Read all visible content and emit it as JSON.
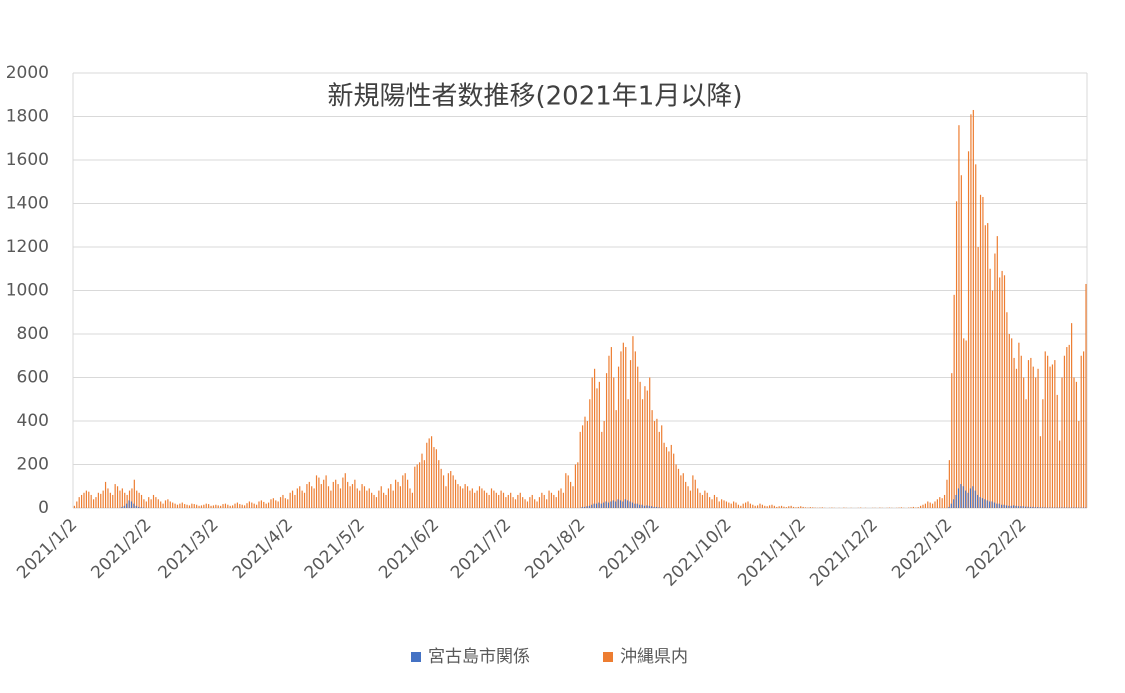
{
  "chart_data": {
    "type": "bar",
    "title": "新規陽性者数推移(2021年1月以降)",
    "categories": [
      "2021/1/2",
      null,
      null,
      null,
      null,
      null,
      null,
      null,
      null,
      null,
      null,
      null,
      null,
      null,
      null,
      null,
      null,
      null,
      null,
      null,
      null,
      null,
      null,
      null,
      null,
      null,
      null,
      null,
      null,
      null,
      null,
      "2021/2/2",
      null,
      null,
      null,
      null,
      null,
      null,
      null,
      null,
      null,
      null,
      null,
      null,
      null,
      null,
      null,
      null,
      null,
      null,
      null,
      null,
      null,
      null,
      null,
      null,
      null,
      null,
      null,
      "2021/3/2",
      null,
      null,
      null,
      null,
      null,
      null,
      null,
      null,
      null,
      null,
      null,
      null,
      null,
      null,
      null,
      null,
      null,
      null,
      null,
      null,
      null,
      null,
      null,
      null,
      null,
      null,
      null,
      null,
      null,
      null,
      "2021/4/2",
      null,
      null,
      null,
      null,
      null,
      null,
      null,
      null,
      null,
      null,
      null,
      null,
      null,
      null,
      null,
      null,
      null,
      null,
      null,
      null,
      null,
      null,
      null,
      null,
      null,
      null,
      null,
      null,
      null,
      "2021/5/2",
      null,
      null,
      null,
      null,
      null,
      null,
      null,
      null,
      null,
      null,
      null,
      null,
      null,
      null,
      null,
      null,
      null,
      null,
      null,
      null,
      null,
      null,
      null,
      null,
      null,
      null,
      null,
      null,
      null,
      null,
      "2021/6/2",
      null,
      null,
      null,
      null,
      null,
      null,
      null,
      null,
      null,
      null,
      null,
      null,
      null,
      null,
      null,
      null,
      null,
      null,
      null,
      null,
      null,
      null,
      null,
      null,
      null,
      null,
      null,
      null,
      null,
      "2021/7/2",
      null,
      null,
      null,
      null,
      null,
      null,
      null,
      null,
      null,
      null,
      null,
      null,
      null,
      null,
      null,
      null,
      null,
      null,
      null,
      null,
      null,
      null,
      null,
      null,
      null,
      null,
      null,
      null,
      null,
      null,
      "2021/8/2",
      null,
      null,
      null,
      null,
      null,
      null,
      null,
      null,
      null,
      null,
      null,
      null,
      null,
      null,
      null,
      null,
      null,
      null,
      null,
      null,
      null,
      null,
      null,
      null,
      null,
      null,
      null,
      null,
      null,
      null,
      "2021/9/2",
      null,
      null,
      null,
      null,
      null,
      null,
      null,
      null,
      null,
      null,
      null,
      null,
      null,
      null,
      null,
      null,
      null,
      null,
      null,
      null,
      null,
      null,
      null,
      null,
      null,
      null,
      null,
      null,
      null,
      "2021/10/2",
      null,
      null,
      null,
      null,
      null,
      null,
      null,
      null,
      null,
      null,
      null,
      null,
      null,
      null,
      null,
      null,
      null,
      null,
      null,
      null,
      null,
      null,
      null,
      null,
      null,
      null,
      null,
      null,
      null,
      null,
      "2021/11/2",
      null,
      null,
      null,
      null,
      null,
      null,
      null,
      null,
      null,
      null,
      null,
      null,
      null,
      null,
      null,
      null,
      null,
      null,
      null,
      null,
      null,
      null,
      null,
      null,
      null,
      null,
      null,
      null,
      null,
      "2021/12/2",
      null,
      null,
      null,
      null,
      null,
      null,
      null,
      null,
      null,
      null,
      null,
      null,
      null,
      null,
      null,
      null,
      null,
      null,
      null,
      null,
      null,
      null,
      null,
      null,
      null,
      null,
      null,
      null,
      null,
      null,
      "2022/1/2",
      null,
      null,
      null,
      null,
      null,
      null,
      null,
      null,
      null,
      null,
      null,
      null,
      null,
      null,
      null,
      null,
      null,
      null,
      null,
      null,
      null,
      null,
      null,
      null,
      null,
      null,
      null,
      null,
      null,
      null,
      "2022/2/2",
      null,
      null,
      null,
      null,
      null,
      null,
      null,
      null,
      null,
      null,
      null,
      null,
      null,
      null,
      null,
      null,
      null,
      null,
      null,
      null,
      null,
      null,
      null,
      null,
      null,
      null
    ],
    "series": [
      {
        "name": "宮古島市関係",
        "color": "#4472c4",
        "values": [
          0,
          0,
          0,
          0,
          0,
          0,
          0,
          0,
          0,
          0,
          0,
          0,
          0,
          0,
          0,
          0,
          0,
          0,
          0,
          0,
          5,
          10,
          20,
          35,
          30,
          20,
          10,
          5,
          3,
          2,
          0,
          0,
          0,
          0,
          0,
          0,
          0,
          0,
          0,
          0,
          0,
          0,
          0,
          0,
          0,
          0,
          0,
          0,
          0,
          0,
          0,
          0,
          0,
          0,
          0,
          0,
          0,
          0,
          0,
          0,
          0,
          0,
          0,
          0,
          0,
          0,
          0,
          0,
          0,
          0,
          0,
          0,
          0,
          0,
          0,
          0,
          0,
          0,
          0,
          0,
          0,
          0,
          0,
          0,
          0,
          0,
          0,
          0,
          0,
          0,
          0,
          0,
          0,
          0,
          0,
          0,
          0,
          0,
          0,
          0,
          0,
          0,
          0,
          0,
          0,
          0,
          0,
          0,
          0,
          0,
          0,
          0,
          0,
          0,
          0,
          0,
          0,
          0,
          0,
          0,
          0,
          0,
          0,
          0,
          0,
          0,
          0,
          0,
          0,
          0,
          0,
          0,
          0,
          0,
          0,
          0,
          0,
          0,
          0,
          0,
          0,
          0,
          0,
          0,
          0,
          0,
          0,
          0,
          0,
          0,
          0,
          0,
          0,
          0,
          0,
          0,
          0,
          0,
          0,
          0,
          0,
          0,
          0,
          0,
          0,
          0,
          0,
          0,
          0,
          0,
          0,
          0,
          0,
          0,
          0,
          0,
          0,
          0,
          0,
          0,
          0,
          0,
          0,
          0,
          0,
          0,
          0,
          0,
          0,
          0,
          0,
          0,
          0,
          0,
          0,
          0,
          0,
          0,
          0,
          0,
          0,
          0,
          0,
          0,
          0,
          0,
          0,
          0,
          0,
          0,
          0,
          0,
          5,
          5,
          8,
          10,
          15,
          20,
          20,
          25,
          20,
          25,
          30,
          25,
          30,
          35,
          30,
          40,
          35,
          30,
          40,
          35,
          30,
          25,
          20,
          20,
          15,
          15,
          10,
          12,
          10,
          8,
          5,
          5,
          3,
          2,
          0,
          0,
          0,
          0,
          0,
          0,
          0,
          0,
          0,
          0,
          0,
          0,
          0,
          0,
          0,
          0,
          0,
          0,
          0,
          0,
          0,
          0,
          0,
          0,
          0,
          0,
          0,
          0,
          0,
          0,
          0,
          0,
          0,
          0,
          0,
          0,
          0,
          0,
          0,
          0,
          0,
          0,
          0,
          0,
          0,
          0,
          0,
          0,
          0,
          0,
          0,
          0,
          0,
          0,
          0,
          0,
          0,
          0,
          0,
          0,
          0,
          0,
          0,
          0,
          0,
          0,
          0,
          0,
          0,
          0,
          0,
          0,
          0,
          0,
          0,
          0,
          0,
          0,
          0,
          0,
          0,
          0,
          0,
          0,
          0,
          0,
          0,
          0,
          0,
          0,
          0,
          0,
          0,
          0,
          0,
          0,
          0,
          0,
          0,
          0,
          0,
          0,
          0,
          0,
          0,
          0,
          0,
          0,
          0,
          0,
          0,
          0,
          0,
          0,
          0,
          0,
          0,
          0,
          0,
          5,
          20,
          40,
          60,
          90,
          110,
          100,
          80,
          70,
          90,
          100,
          80,
          60,
          50,
          45,
          40,
          35,
          30,
          30,
          25,
          20,
          20,
          15,
          15,
          12,
          10,
          10,
          12,
          10,
          8,
          8,
          8,
          6,
          6,
          5,
          5,
          4,
          4,
          3,
          3,
          3,
          2,
          2,
          2,
          2,
          2,
          2,
          2,
          2,
          2,
          2,
          2,
          2,
          2,
          2,
          2,
          2,
          2
        ]
      },
      {
        "name": "沖縄県内",
        "color": "#ed7d31",
        "values": [
          10,
          30,
          50,
          60,
          70,
          80,
          75,
          60,
          40,
          50,
          70,
          65,
          80,
          120,
          90,
          70,
          60,
          110,
          100,
          80,
          90,
          70,
          60,
          80,
          90,
          130,
          80,
          70,
          60,
          40,
          30,
          50,
          40,
          60,
          50,
          40,
          30,
          20,
          35,
          40,
          30,
          25,
          20,
          15,
          20,
          25,
          18,
          15,
          12,
          20,
          18,
          15,
          10,
          12,
          15,
          20,
          18,
          10,
          12,
          15,
          12,
          10,
          18,
          20,
          15,
          10,
          12,
          20,
          25,
          18,
          15,
          12,
          22,
          30,
          25,
          20,
          15,
          30,
          35,
          28,
          20,
          25,
          40,
          45,
          35,
          30,
          50,
          60,
          45,
          40,
          70,
          80,
          60,
          90,
          100,
          80,
          70,
          110,
          120,
          100,
          90,
          150,
          140,
          110,
          130,
          150,
          100,
          80,
          120,
          130,
          110,
          90,
          140,
          160,
          120,
          100,
          110,
          130,
          90,
          80,
          110,
          100,
          80,
          90,
          70,
          60,
          50,
          80,
          100,
          70,
          60,
          90,
          110,
          80,
          130,
          120,
          100,
          150,
          160,
          130,
          90,
          70,
          190,
          200,
          210,
          250,
          220,
          300,
          320,
          330,
          280,
          270,
          220,
          180,
          150,
          100,
          160,
          170,
          150,
          130,
          110,
          100,
          90,
          110,
          100,
          80,
          90,
          70,
          80,
          100,
          90,
          80,
          70,
          60,
          90,
          80,
          70,
          60,
          80,
          70,
          50,
          60,
          70,
          50,
          40,
          60,
          70,
          50,
          40,
          30,
          50,
          60,
          40,
          30,
          50,
          70,
          60,
          40,
          80,
          70,
          60,
          50,
          80,
          90,
          70,
          160,
          150,
          120,
          100,
          200,
          210,
          350,
          380,
          420,
          400,
          500,
          600,
          640,
          550,
          580,
          350,
          400,
          620,
          700,
          740,
          600,
          450,
          650,
          720,
          760,
          740,
          500,
          680,
          790,
          720,
          650,
          580,
          500,
          560,
          540,
          600,
          450,
          400,
          410,
          350,
          380,
          300,
          280,
          260,
          290,
          250,
          200,
          180,
          150,
          160,
          120,
          100,
          80,
          150,
          130,
          90,
          70,
          60,
          80,
          70,
          50,
          40,
          60,
          50,
          30,
          40,
          35,
          30,
          25,
          20,
          30,
          25,
          15,
          10,
          20,
          25,
          30,
          20,
          15,
          10,
          12,
          20,
          15,
          10,
          8,
          12,
          15,
          10,
          5,
          8,
          10,
          6,
          4,
          8,
          10,
          5,
          3,
          5,
          8,
          5,
          3,
          2,
          4,
          3,
          2,
          1,
          2,
          3,
          1,
          0,
          1,
          2,
          1,
          0,
          1,
          0,
          2,
          1,
          0,
          1,
          0,
          0,
          1,
          2,
          0,
          1,
          0,
          0,
          1,
          1,
          0,
          2,
          1,
          0,
          1,
          2,
          1,
          0,
          1,
          2,
          3,
          1,
          0,
          2,
          3,
          5,
          2,
          4,
          10,
          15,
          20,
          30,
          25,
          20,
          30,
          40,
          50,
          45,
          60,
          130,
          220,
          620,
          980,
          1410,
          1760,
          1530,
          780,
          770,
          1640,
          1810,
          1830,
          1580,
          1200,
          1440,
          1430,
          1300,
          1310,
          1100,
          1000,
          1170,
          1250,
          1060,
          1090,
          1070,
          900,
          800,
          780,
          690,
          640,
          760,
          700,
          600,
          500,
          680,
          690,
          650,
          600,
          640,
          330,
          500,
          720,
          700,
          650,
          660,
          680,
          520,
          310,
          600,
          700,
          740,
          750,
          850,
          600,
          580,
          400,
          700,
          720,
          1030
        ]
      }
    ],
    "ylim": [
      0,
      2000
    ],
    "yticks": [
      0,
      200,
      400,
      600,
      800,
      1000,
      1200,
      1400,
      1600,
      1800,
      2000
    ],
    "grid": true,
    "legend": "bottom"
  }
}
